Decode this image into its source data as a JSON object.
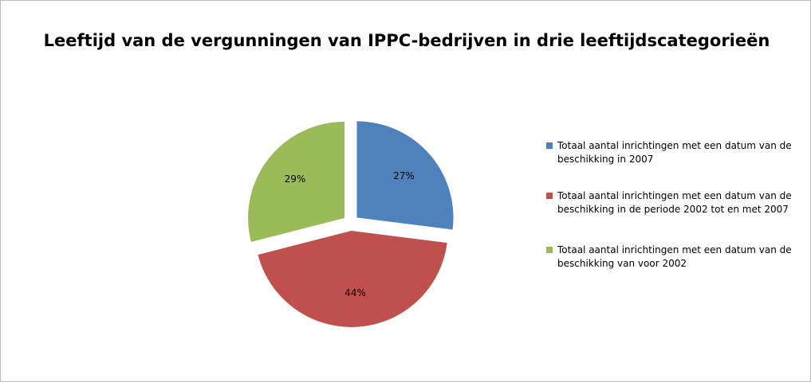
{
  "chart_data": {
    "type": "pie",
    "title": "Leeftijd van de vergunningen van IPPC-bedrijven in drie leeftijdscategorieën",
    "categories": [
      "Totaal aantal inrichtingen met een datum van de beschikking in 2007",
      "Totaal aantal inrichtingen met een datum van de beschikking in de periode 2002 tot en met 2007",
      "Totaal aantal inrichtingen met een datum van de beschikking van voor 2002"
    ],
    "values": [
      27,
      44,
      29
    ],
    "value_labels": [
      "27%",
      "44%",
      "29%"
    ],
    "colors": [
      "#4f81bd",
      "#c0504d",
      "#9bbb59"
    ],
    "legend": "right"
  }
}
